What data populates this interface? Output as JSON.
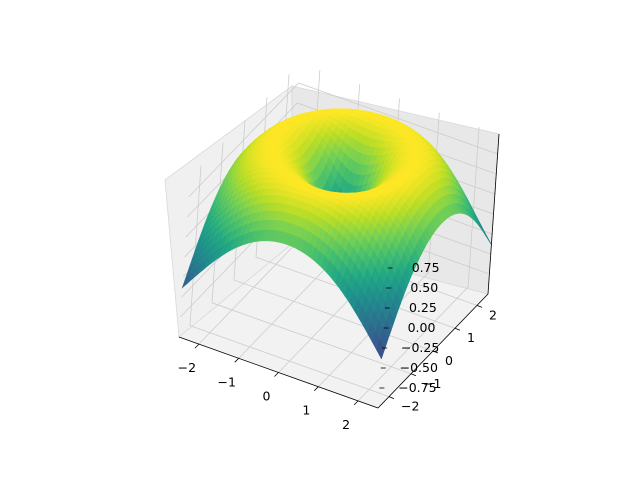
{
  "chart_data": {
    "type": "surface",
    "function": "z = sin(sqrt(x^2 + y^2))",
    "x_range": [
      -2.5,
      2.5
    ],
    "y_range": [
      -2.5,
      2.5
    ],
    "z_range": [
      -1,
      1
    ],
    "colormap": "viridis",
    "x_ticks": [
      -2,
      -1,
      0,
      1,
      2
    ],
    "y_ticks": [
      -2,
      -1,
      0,
      1,
      2
    ],
    "z_ticks": [
      -0.75,
      -0.5,
      -0.25,
      0.0,
      0.25,
      0.5,
      0.75
    ],
    "x_tick_labels": [
      "−2",
      "−1",
      "0",
      "1",
      "2"
    ],
    "y_tick_labels": [
      "−2",
      "−1",
      "0",
      "1",
      "2"
    ],
    "z_tick_labels": [
      "−0.75",
      "−0.50",
      "−0.25",
      "0.00",
      "0.25",
      "0.50",
      "0.75"
    ],
    "grid": true,
    "legend": "none"
  }
}
